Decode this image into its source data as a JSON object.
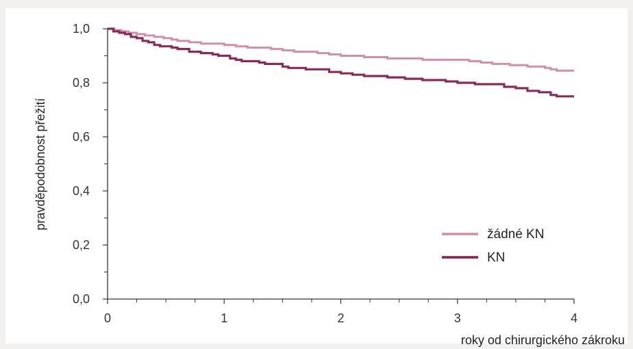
{
  "chart_data": {
    "type": "line",
    "xlabel": "roky od chirurgického zákroku",
    "ylabel": "pravděpodobnost přežití",
    "xlim": [
      0,
      4
    ],
    "ylim": [
      0,
      1
    ],
    "x_ticks": [
      "0",
      "1",
      "2",
      "3",
      "4"
    ],
    "y_ticks": [
      "0,0",
      "0,2",
      "0,4",
      "0,6",
      "0,8",
      "1,0"
    ],
    "grid": false,
    "legend_position": "bottom-right",
    "series": [
      {
        "name": "žádné KN",
        "color": "#d08fa8",
        "points": [
          [
            0,
            1.0
          ],
          [
            0.06,
            0.995
          ],
          [
            0.12,
            0.99
          ],
          [
            0.18,
            0.985
          ],
          [
            0.25,
            0.98
          ],
          [
            0.32,
            0.975
          ],
          [
            0.4,
            0.97
          ],
          [
            0.48,
            0.965
          ],
          [
            0.55,
            0.96
          ],
          [
            0.6,
            0.955
          ],
          [
            0.7,
            0.95
          ],
          [
            0.8,
            0.945
          ],
          [
            0.9,
            0.945
          ],
          [
            1.0,
            0.94
          ],
          [
            1.1,
            0.935
          ],
          [
            1.2,
            0.93
          ],
          [
            1.3,
            0.93
          ],
          [
            1.4,
            0.925
          ],
          [
            1.5,
            0.92
          ],
          [
            1.6,
            0.915
          ],
          [
            1.8,
            0.91
          ],
          [
            1.9,
            0.905
          ],
          [
            2.0,
            0.9
          ],
          [
            2.2,
            0.895
          ],
          [
            2.4,
            0.89
          ],
          [
            2.6,
            0.89
          ],
          [
            2.7,
            0.885
          ],
          [
            2.9,
            0.885
          ],
          [
            3.1,
            0.88
          ],
          [
            3.2,
            0.875
          ],
          [
            3.3,
            0.87
          ],
          [
            3.45,
            0.865
          ],
          [
            3.6,
            0.86
          ],
          [
            3.75,
            0.855
          ],
          [
            3.8,
            0.85
          ],
          [
            3.85,
            0.845
          ],
          [
            4.0,
            0.845
          ]
        ]
      },
      {
        "name": "KN",
        "color": "#8a2a5c",
        "points": [
          [
            0,
            1.0
          ],
          [
            0.05,
            0.99
          ],
          [
            0.1,
            0.985
          ],
          [
            0.15,
            0.98
          ],
          [
            0.2,
            0.97
          ],
          [
            0.25,
            0.965
          ],
          [
            0.3,
            0.955
          ],
          [
            0.35,
            0.95
          ],
          [
            0.4,
            0.94
          ],
          [
            0.45,
            0.935
          ],
          [
            0.55,
            0.93
          ],
          [
            0.6,
            0.925
          ],
          [
            0.7,
            0.915
          ],
          [
            0.8,
            0.91
          ],
          [
            0.9,
            0.905
          ],
          [
            0.95,
            0.9
          ],
          [
            1.05,
            0.89
          ],
          [
            1.1,
            0.885
          ],
          [
            1.15,
            0.88
          ],
          [
            1.3,
            0.875
          ],
          [
            1.35,
            0.87
          ],
          [
            1.5,
            0.86
          ],
          [
            1.55,
            0.855
          ],
          [
            1.7,
            0.85
          ],
          [
            1.9,
            0.84
          ],
          [
            2.0,
            0.835
          ],
          [
            2.1,
            0.83
          ],
          [
            2.2,
            0.825
          ],
          [
            2.4,
            0.82
          ],
          [
            2.55,
            0.815
          ],
          [
            2.7,
            0.81
          ],
          [
            2.9,
            0.805
          ],
          [
            3.0,
            0.8
          ],
          [
            3.15,
            0.795
          ],
          [
            3.4,
            0.785
          ],
          [
            3.5,
            0.78
          ],
          [
            3.6,
            0.77
          ],
          [
            3.7,
            0.765
          ],
          [
            3.8,
            0.755
          ],
          [
            3.85,
            0.75
          ],
          [
            4.0,
            0.75
          ]
        ]
      }
    ]
  }
}
